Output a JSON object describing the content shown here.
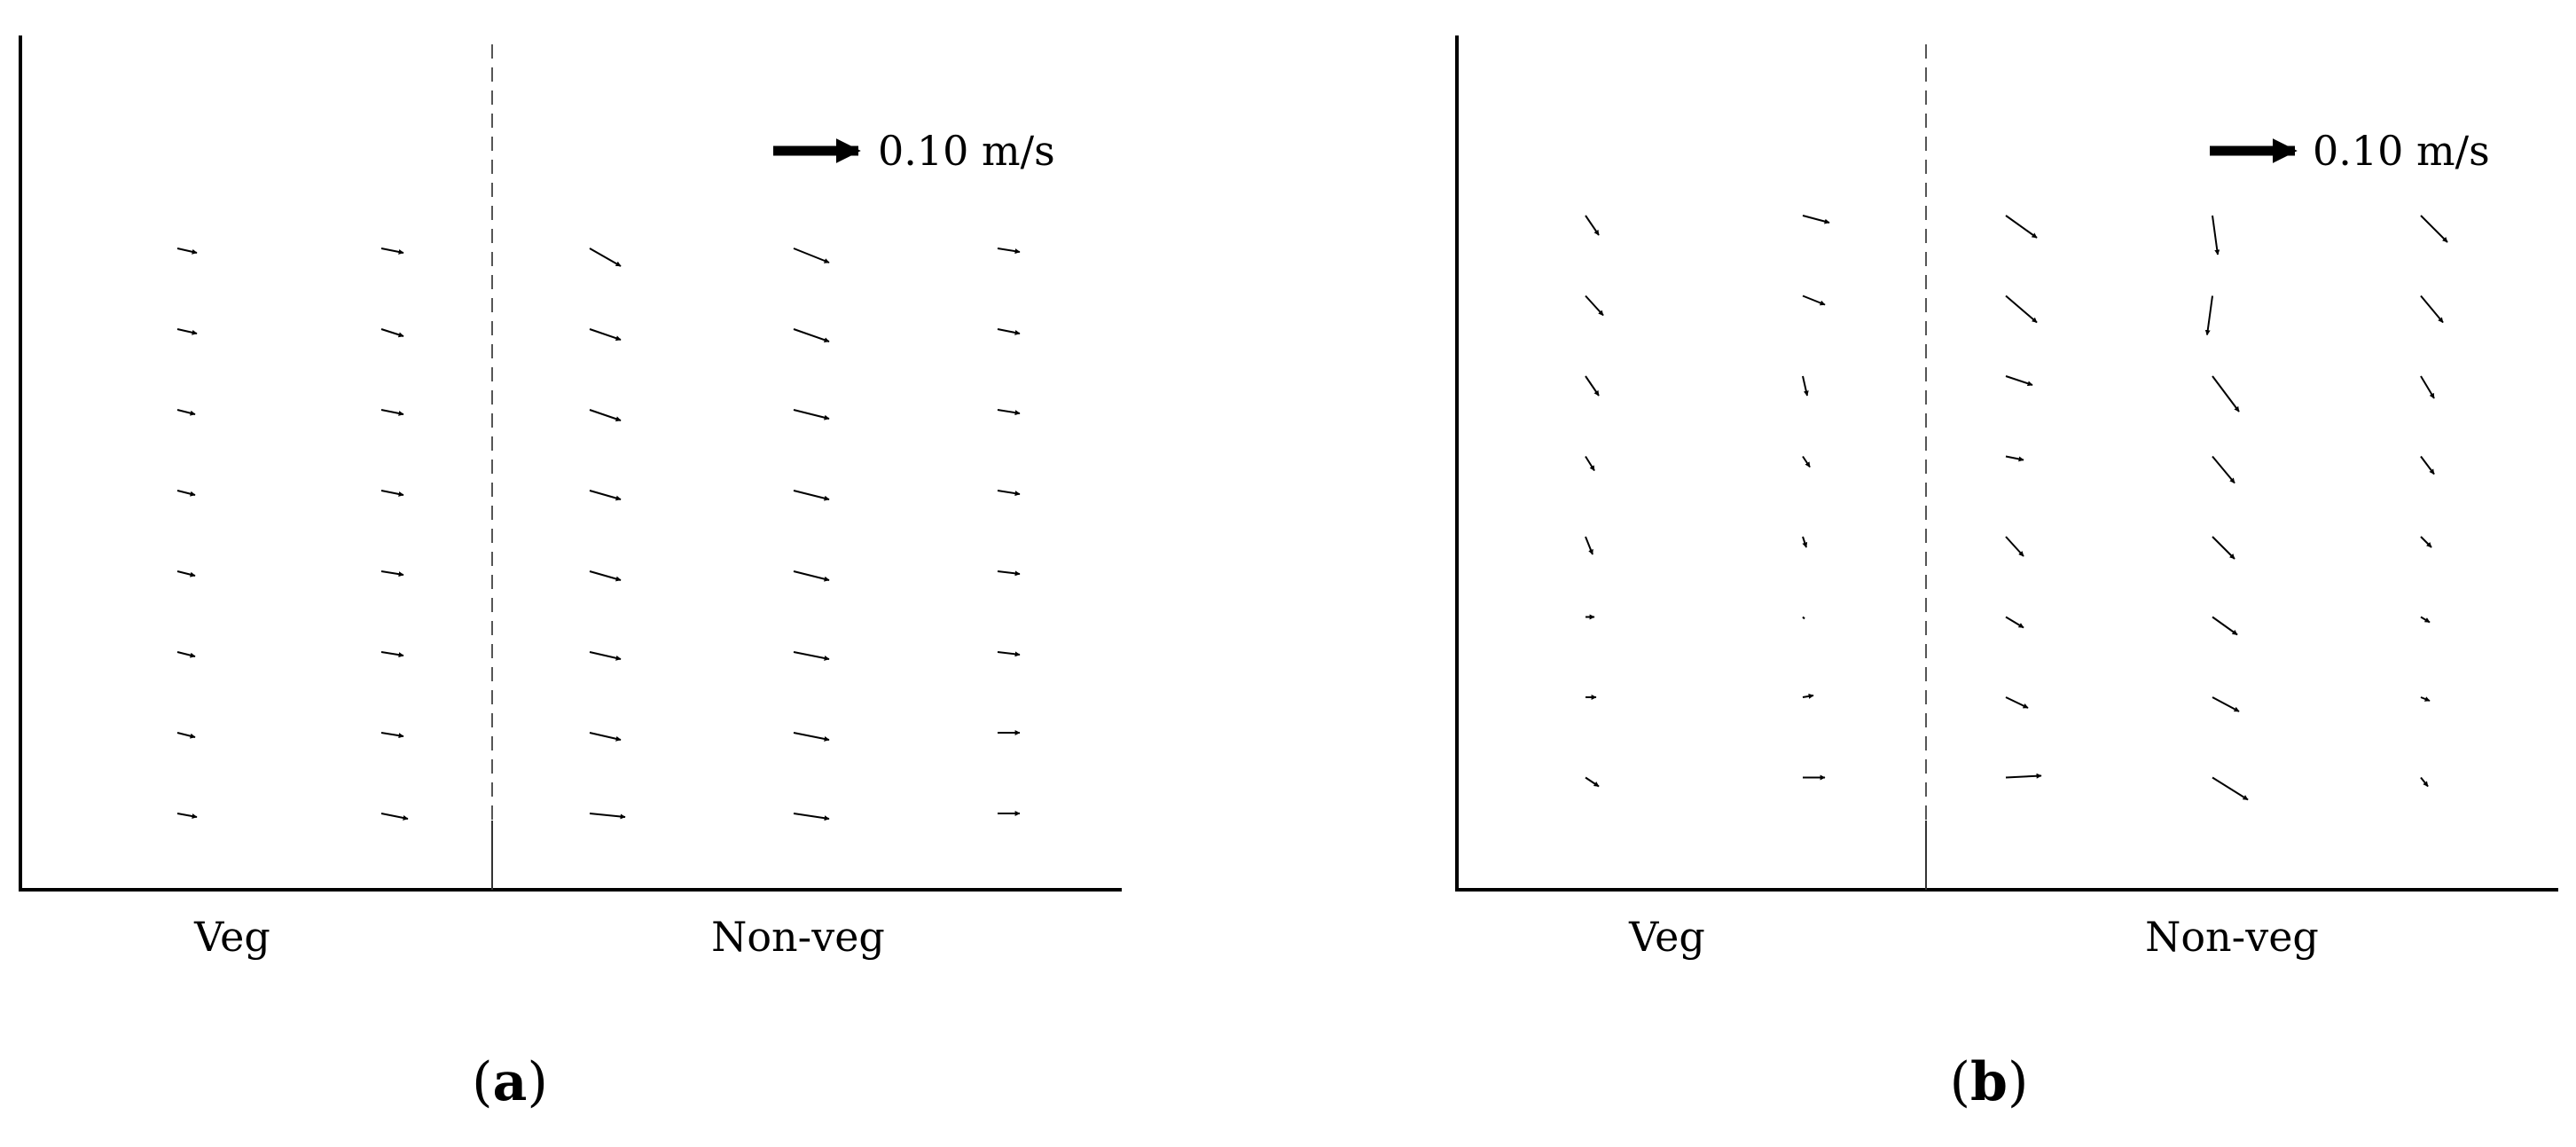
{
  "chart_data": [
    {
      "type": "quiver",
      "panel_label": "a",
      "regions": [
        {
          "label": "Veg"
        },
        {
          "label": "Non-veg"
        }
      ],
      "reference_vector": {
        "magnitude": 0.1,
        "label": "0.10 m/s"
      },
      "columns": [
        {
          "id": 1,
          "region": "Veg",
          "vectors": [
            {
              "u": 0.022,
              "v": -0.005
            },
            {
              "u": 0.022,
              "v": -0.005
            },
            {
              "u": 0.02,
              "v": -0.005
            },
            {
              "u": 0.02,
              "v": -0.005
            },
            {
              "u": 0.02,
              "v": -0.005
            },
            {
              "u": 0.02,
              "v": -0.005
            },
            {
              "u": 0.02,
              "v": -0.005
            },
            {
              "u": 0.022,
              "v": -0.004
            }
          ]
        },
        {
          "id": 2,
          "region": "Veg",
          "vectors": [
            {
              "u": 0.025,
              "v": -0.005
            },
            {
              "u": 0.025,
              "v": -0.008
            },
            {
              "u": 0.025,
              "v": -0.005
            },
            {
              "u": 0.025,
              "v": -0.005
            },
            {
              "u": 0.025,
              "v": -0.004
            },
            {
              "u": 0.025,
              "v": -0.004
            },
            {
              "u": 0.025,
              "v": -0.004
            },
            {
              "u": 0.03,
              "v": -0.006
            }
          ]
        },
        {
          "id": 3,
          "region": "Non-veg",
          "vectors": [
            {
              "u": 0.035,
              "v": -0.02
            },
            {
              "u": 0.035,
              "v": -0.012
            },
            {
              "u": 0.035,
              "v": -0.012
            },
            {
              "u": 0.035,
              "v": -0.01
            },
            {
              "u": 0.035,
              "v": -0.01
            },
            {
              "u": 0.035,
              "v": -0.008
            },
            {
              "u": 0.035,
              "v": -0.008
            },
            {
              "u": 0.04,
              "v": -0.004
            }
          ]
        },
        {
          "id": 4,
          "region": "Non-veg",
          "vectors": [
            {
              "u": 0.04,
              "v": -0.016
            },
            {
              "u": 0.04,
              "v": -0.014
            },
            {
              "u": 0.04,
              "v": -0.01
            },
            {
              "u": 0.04,
              "v": -0.01
            },
            {
              "u": 0.04,
              "v": -0.01
            },
            {
              "u": 0.04,
              "v": -0.008
            },
            {
              "u": 0.04,
              "v": -0.008
            },
            {
              "u": 0.04,
              "v": -0.006
            }
          ]
        },
        {
          "id": 5,
          "region": "Non-veg",
          "vectors": [
            {
              "u": 0.025,
              "v": -0.004
            },
            {
              "u": 0.025,
              "v": -0.005
            },
            {
              "u": 0.025,
              "v": -0.004
            },
            {
              "u": 0.025,
              "v": -0.004
            },
            {
              "u": 0.025,
              "v": -0.003
            },
            {
              "u": 0.025,
              "v": -0.003
            },
            {
              "u": 0.025,
              "v": 0.0
            },
            {
              "u": 0.025,
              "v": 0.0
            }
          ]
        }
      ]
    },
    {
      "type": "quiver",
      "panel_label": "b",
      "regions": [
        {
          "label": "Veg"
        },
        {
          "label": "Non-veg"
        }
      ],
      "reference_vector": {
        "magnitude": 0.1,
        "label": "0.10 m/s"
      },
      "columns": [
        {
          "id": 1,
          "region": "Veg",
          "vectors": [
            {
              "u": 0.015,
              "v": -0.022
            },
            {
              "u": 0.02,
              "v": -0.022
            },
            {
              "u": 0.015,
              "v": -0.022
            },
            {
              "u": 0.01,
              "v": -0.016
            },
            {
              "u": 0.008,
              "v": -0.02
            },
            {
              "u": 0.01,
              "v": 0.0
            },
            {
              "u": 0.012,
              "v": 0.0
            },
            {
              "u": 0.015,
              "v": -0.01
            }
          ]
        },
        {
          "id": 2,
          "region": "Veg",
          "vectors": [
            {
              "u": 0.03,
              "v": -0.008
            },
            {
              "u": 0.025,
              "v": -0.01
            },
            {
              "u": 0.005,
              "v": -0.022
            },
            {
              "u": 0.008,
              "v": -0.012
            },
            {
              "u": 0.004,
              "v": -0.012
            },
            {
              "u": 0.002,
              "v": -0.002
            },
            {
              "u": 0.012,
              "v": 0.002
            },
            {
              "u": 0.025,
              "v": 0.0
            }
          ]
        },
        {
          "id": 3,
          "region": "Non-veg",
          "vectors": [
            {
              "u": 0.035,
              "v": -0.025
            },
            {
              "u": 0.035,
              "v": -0.03
            },
            {
              "u": 0.03,
              "v": -0.01
            },
            {
              "u": 0.02,
              "v": -0.004
            },
            {
              "u": 0.02,
              "v": -0.022
            },
            {
              "u": 0.02,
              "v": -0.012
            },
            {
              "u": 0.025,
              "v": -0.012
            },
            {
              "u": 0.04,
              "v": 0.002
            }
          ]
        },
        {
          "id": 4,
          "region": "Non-veg",
          "vectors": [
            {
              "u": 0.006,
              "v": -0.044
            },
            {
              "u": -0.006,
              "v": -0.044
            },
            {
              "u": 0.03,
              "v": -0.04
            },
            {
              "u": 0.025,
              "v": -0.03
            },
            {
              "u": 0.025,
              "v": -0.025
            },
            {
              "u": 0.028,
              "v": -0.02
            },
            {
              "u": 0.03,
              "v": -0.016
            },
            {
              "u": 0.04,
              "v": -0.025
            }
          ]
        },
        {
          "id": 5,
          "region": "Non-veg",
          "vectors": [
            {
              "u": 0.03,
              "v": -0.03
            },
            {
              "u": 0.025,
              "v": -0.03
            },
            {
              "u": 0.015,
              "v": -0.025
            },
            {
              "u": 0.015,
              "v": -0.02
            },
            {
              "u": 0.012,
              "v": -0.012
            },
            {
              "u": 0.01,
              "v": -0.006
            },
            {
              "u": 0.01,
              "v": -0.004
            },
            {
              "u": 0.008,
              "v": -0.01
            }
          ]
        }
      ]
    }
  ]
}
